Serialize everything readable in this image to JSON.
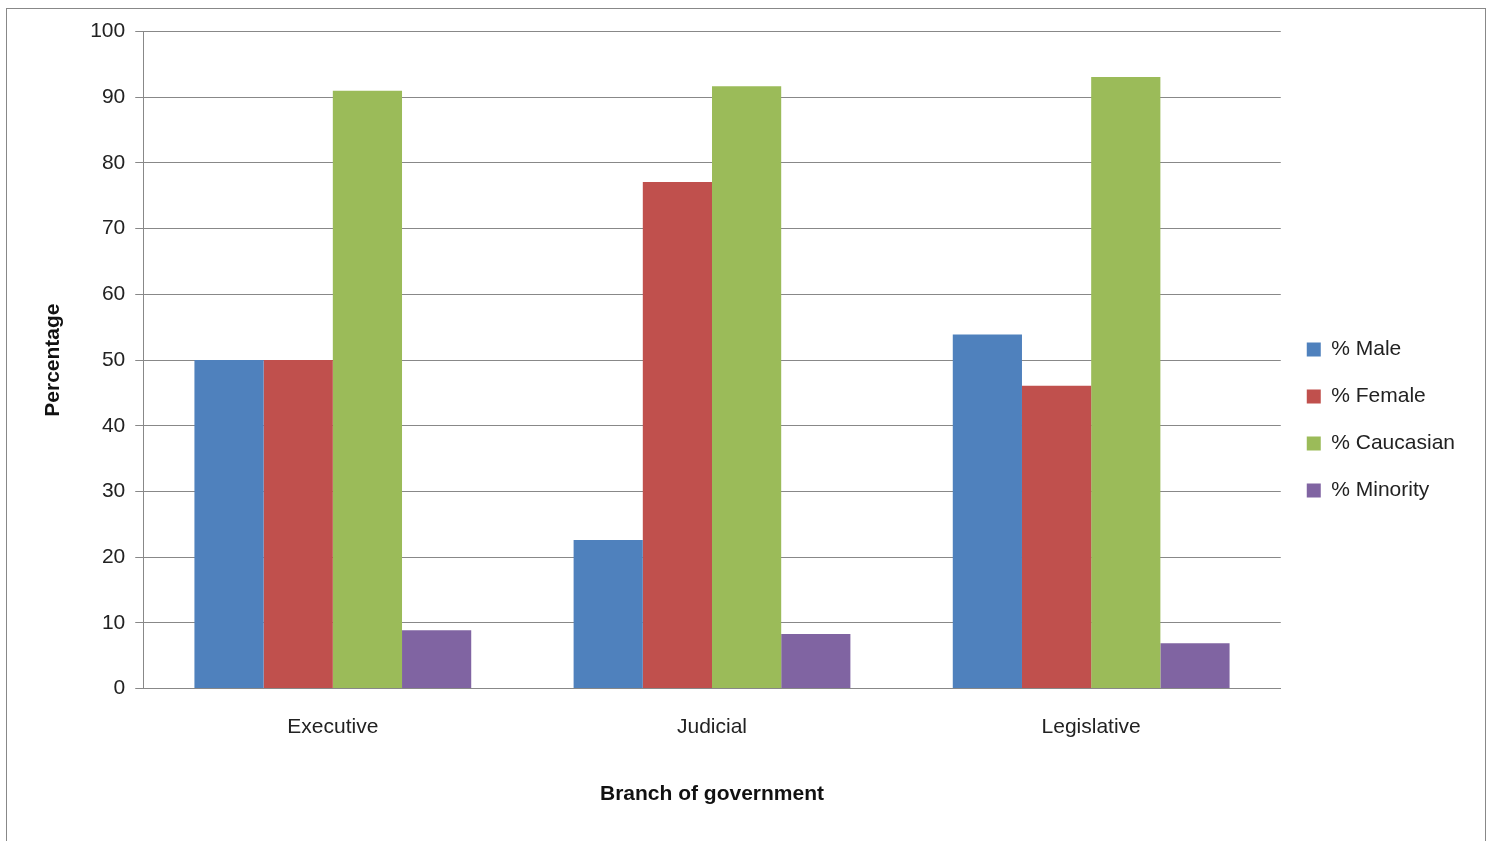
{
  "chart_data": {
    "type": "bar",
    "xlabel": "Branch of government",
    "ylabel": "Percentage",
    "categories": [
      "Executive",
      "Judicial",
      "Legislative"
    ],
    "series": [
      {
        "name": "% Male",
        "color": "#4f81bd",
        "values": [
          50,
          22.6,
          53.9
        ]
      },
      {
        "name": "% Female",
        "color": "#c0504d",
        "values": [
          50,
          77.1,
          46.1
        ]
      },
      {
        "name": "% Caucasian",
        "color": "#9bbb59",
        "values": [
          91,
          91.7,
          93.1
        ]
      },
      {
        "name": "% Minority",
        "color": "#8064a2",
        "values": [
          8.9,
          8.3,
          6.9
        ]
      }
    ],
    "ylim": [
      0,
      100
    ],
    "yticks": [
      0,
      10,
      20,
      30,
      40,
      50,
      60,
      70,
      80,
      90,
      100
    ],
    "grid": "y",
    "legend": "right"
  }
}
